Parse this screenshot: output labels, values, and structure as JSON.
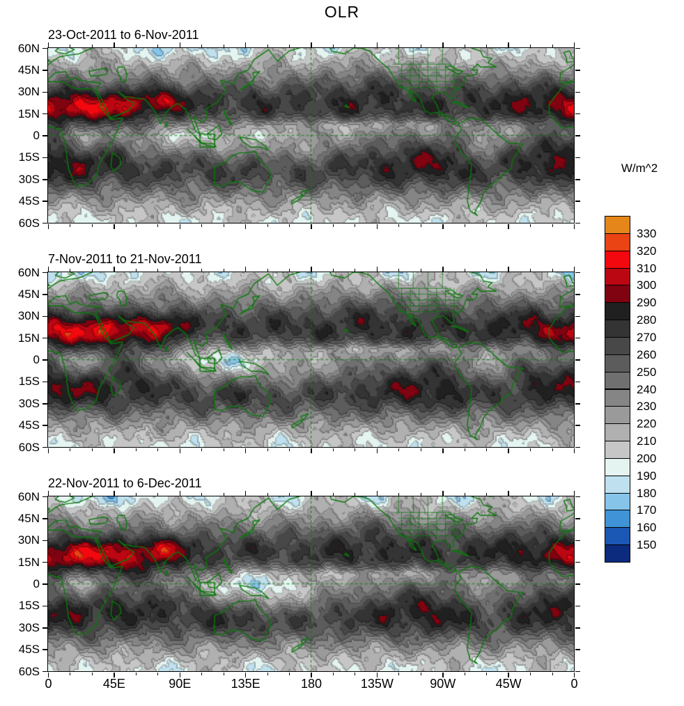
{
  "chart_data": {
    "type": "heatmap",
    "title": "OLR",
    "units": "W/m^2",
    "panels": [
      {
        "title": "23-Oct-2011 to 6-Nov-2011"
      },
      {
        "title": "7-Nov-2011 to 21-Nov-2011"
      },
      {
        "title": "22-Nov-2011 to 6-Dec-2011"
      }
    ],
    "x_axis": {
      "tick_labels": [
        "0",
        "45E",
        "90E",
        "135E",
        "180",
        "135W",
        "90W",
        "45W",
        "0"
      ],
      "tick_values_deg_east": [
        0,
        45,
        90,
        135,
        180,
        225,
        270,
        315,
        360
      ],
      "range_deg_east": [
        0,
        360
      ]
    },
    "y_axis": {
      "tick_labels": [
        "60N",
        "45N",
        "30N",
        "15N",
        "0",
        "15S",
        "30S",
        "45S",
        "60S"
      ],
      "tick_values_deg_north": [
        60,
        45,
        30,
        15,
        0,
        -15,
        -30,
        -45,
        -60
      ],
      "range_deg_north": [
        -60,
        60
      ]
    },
    "colorbar": {
      "units": "W/m^2",
      "tick_labels": [
        "330",
        "320",
        "310",
        "300",
        "290",
        "280",
        "270",
        "260",
        "250",
        "240",
        "230",
        "220",
        "210",
        "200",
        "190",
        "180",
        "170",
        "160",
        "150"
      ],
      "bin_edges": [
        150,
        160,
        170,
        180,
        190,
        200,
        210,
        220,
        230,
        240,
        250,
        260,
        270,
        280,
        290,
        300,
        310,
        320,
        330
      ],
      "colors_low_to_high": [
        "#0c2a7e",
        "#1b57b5",
        "#3f93d6",
        "#86c5e9",
        "#bfe0ee",
        "#e4f4f1",
        "#c6c6c6",
        "#b0b0b0",
        "#9a9a9a",
        "#858585",
        "#707070",
        "#5c5c5c",
        "#484848",
        "#343434",
        "#202020",
        "#7f0310",
        "#bb0712",
        "#f2080e",
        "#ea4314",
        "#e5861b"
      ]
    },
    "map": {
      "projection": "equirectangular",
      "coastline_color": "#0a7a0a",
      "frame_color": "#000000",
      "lat_extent": [
        -60,
        60
      ],
      "lon_extent_deg_east": [
        0,
        360
      ],
      "reference_lines": {
        "dashed_lat": 0,
        "dashed_lon": 180
      },
      "highlight_box": {
        "lon": [
          104,
          114
        ],
        "lat": [
          -8,
          1
        ]
      }
    }
  }
}
